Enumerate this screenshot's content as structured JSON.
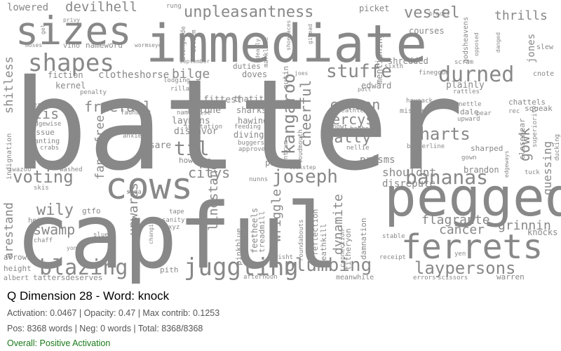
{
  "word_cloud": {
    "color": "#888888",
    "words": [
      "batter",
      "capful",
      "immediate",
      "sizes",
      "pegged",
      "ferrets",
      "shapes",
      "cows",
      "juggling",
      "blazing",
      "durned",
      "plumbing",
      "laypersons",
      "joseph",
      "bananas",
      "stuffe",
      "charts",
      "unpleasantness",
      "devilhell",
      "lowered",
      "vessel",
      "thrills",
      "jones",
      "freefall",
      "voting",
      "kangaroo",
      "batty",
      "carbon",
      "mercys",
      "cheerful",
      "gowk",
      "til",
      "tis",
      "fancyfree",
      "citys",
      "wily",
      "swamp",
      "upwards",
      "linestand",
      "wriggle",
      "dynamite",
      "shouldnt",
      "grinnin",
      "cancer",
      "flagrante",
      "guessing",
      "arestand",
      "knocks",
      "shitless",
      "prisms",
      "bilge",
      "fittest",
      "laymans",
      "malone",
      "disfavor",
      "isare",
      "howlike",
      "diving",
      "hawing",
      "sharks",
      "thatit",
      "doves",
      "duties",
      "outin",
      "feetheels",
      "treadmill",
      "pinkblue",
      "deathkill",
      "reflection",
      "titheryon",
      "damnation",
      "connection",
      "roundabouts",
      "edward",
      "purge",
      "disrepute",
      "brandon",
      "plainly",
      "courses",
      "shredded",
      "mentioning",
      "picket",
      "godsheavens",
      "scram",
      "sixth",
      "marklime",
      "fiction",
      "clotheshorse",
      "kernel",
      "penalty",
      "veritas",
      "edgewise",
      "tissue",
      "wanting",
      "crabs",
      "indignation",
      "iwazoo",
      "washed",
      "skis",
      "soda",
      "heights",
      "chaff",
      "arrows",
      "height",
      "albert",
      "tattersdeserves",
      "pith",
      "afterno​on",
      "wisht",
      "receipt",
      "meanwhile",
      "errors",
      "scissors",
      "warren",
      "yen",
      "stable",
      "slue",
      "gtfo",
      "tape",
      "sanity",
      "xyz",
      "changing",
      "alongside",
      "esteem",
      "september",
      "lodging",
      "rilla",
      "fauna",
      "anxiety",
      "namenoise",
      "invitation",
      "feeding",
      "approve",
      "buggers",
      "tantrum",
      "loudmouth",
      "babber",
      "nellie",
      "nowt",
      "deathtears",
      "misters",
      "haysack",
      "pear",
      "nettle",
      "upward",
      "rec",
      "dale",
      "chattels",
      "squeak",
      "closenear",
      "superiority",
      "edgeways",
      "tuck",
      "ducking",
      "sharped",
      "gown",
      "borderline",
      "finegood",
      "rattles",
      "poll",
      "cnote",
      "slew",
      "danged",
      "opposed",
      "braces",
      "privy",
      "gel",
      "moses",
      "vino",
      "nameword",
      "wormseye",
      "rung",
      "dearly",
      "shoelaces",
      "gilead",
      "joes",
      "lockstep",
      "nunns",
      "yon",
      "entire"
    ]
  },
  "panel": {
    "title": "Q Dimension 28 - Word: knock",
    "stats_line": "Activation: 0.0467 | Opacity: 0.47 | Max contrib: 0.1253",
    "counts_line": "Pos: 8368 words | Neg: 0 words | Total: 8368/8368",
    "status_line": "Overall: Positive Activation",
    "status_color": "#1a7a1a",
    "title_color": "#000000",
    "text_color": "#555555"
  }
}
